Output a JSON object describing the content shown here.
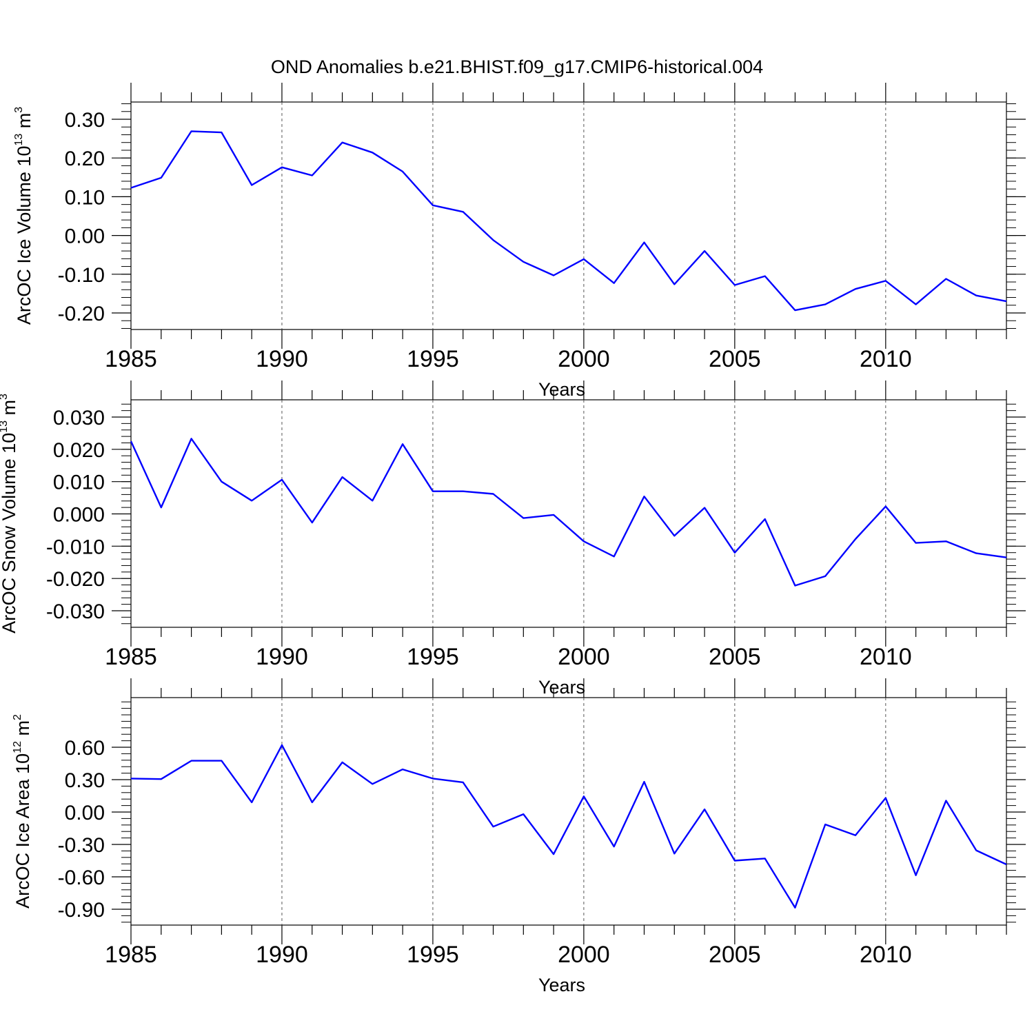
{
  "figure": {
    "title": "OND Anomalies b.e21.BHIST.f09_g17.CMIP6-historical.004"
  },
  "chart_data": [
    {
      "type": "line",
      "title": "",
      "xlabel": "Years",
      "ylabel": {
        "base": "ArcOC Ice Volume 10",
        "exp": "13",
        "unit": " m",
        "unit_exp": "3"
      },
      "x": [
        1985,
        1986,
        1987,
        1988,
        1989,
        1990,
        1991,
        1992,
        1993,
        1994,
        1995,
        1996,
        1997,
        1998,
        1999,
        2000,
        2001,
        2002,
        2003,
        2004,
        2005,
        2006,
        2007,
        2008,
        2009,
        2010,
        2011,
        2012,
        2013,
        2014
      ],
      "series": [
        {
          "values": [
            0.123,
            0.149,
            0.269,
            0.266,
            0.13,
            0.176,
            0.155,
            0.24,
            0.214,
            0.165,
            0.078,
            0.061,
            -0.012,
            -0.068,
            -0.103,
            -0.061,
            -0.123,
            -0.018,
            -0.126,
            -0.04,
            -0.128,
            -0.105,
            -0.193,
            -0.178,
            -0.138,
            -0.117,
            -0.178,
            -0.112,
            -0.155,
            -0.17
          ]
        }
      ],
      "xlim": [
        1985,
        2014
      ],
      "ylim": [
        -0.2,
        0.3
      ],
      "xticks": [
        "1985",
        "1990",
        "1995",
        "2000",
        "2005",
        "2010"
      ],
      "yticks": [
        "0.30",
        "0.20",
        "0.10",
        "0.00",
        "-0.10",
        "-0.20"
      ],
      "line_color": "#0000ff",
      "grid": "vertical dashed at major x ticks"
    },
    {
      "type": "line",
      "title": "",
      "xlabel": "Years",
      "ylabel": {
        "base": "ArcOC Snow Volume 10",
        "exp": "13",
        "unit": " m",
        "unit_exp": "3"
      },
      "x": [
        1985,
        1986,
        1987,
        1988,
        1989,
        1990,
        1991,
        1992,
        1993,
        1994,
        1995,
        1996,
        1997,
        1998,
        1999,
        2000,
        2001,
        2002,
        2003,
        2004,
        2005,
        2006,
        2007,
        2008,
        2009,
        2010,
        2011,
        2012,
        2013,
        2014
      ],
      "series": [
        {
          "values": [
            0.0225,
            0.002,
            0.0233,
            0.01,
            0.0041,
            0.0106,
            -0.0027,
            0.0114,
            0.0041,
            0.0216,
            0.007,
            0.007,
            0.0062,
            -0.0013,
            -0.0003,
            -0.0085,
            -0.0132,
            0.0054,
            -0.0068,
            0.0019,
            -0.012,
            -0.0016,
            -0.0222,
            -0.0193,
            -0.0078,
            0.0023,
            -0.009,
            -0.0085,
            -0.0122,
            -0.0135
          ]
        }
      ],
      "xlim": [
        1985,
        2014
      ],
      "ylim": [
        -0.03,
        0.03
      ],
      "xticks": [
        "1985",
        "1990",
        "1995",
        "2000",
        "2005",
        "2010"
      ],
      "yticks": [
        "0.030",
        "0.020",
        "0.010",
        "0.000",
        "-0.010",
        "-0.020",
        "-0.030"
      ],
      "line_color": "#0000ff",
      "grid": "vertical dashed at major x ticks"
    },
    {
      "type": "line",
      "title": "",
      "xlabel": "Years",
      "ylabel": {
        "base": "ArcOC Ice Area 10",
        "exp": "12",
        "unit": " m",
        "unit_exp": "2"
      },
      "x": [
        1985,
        1986,
        1987,
        1988,
        1989,
        1990,
        1991,
        1992,
        1993,
        1994,
        1995,
        1996,
        1997,
        1998,
        1999,
        2000,
        2001,
        2002,
        2003,
        2004,
        2005,
        2006,
        2007,
        2008,
        2009,
        2010,
        2011,
        2012,
        2013,
        2014
      ],
      "series": [
        {
          "values": [
            0.31,
            0.305,
            0.475,
            0.475,
            0.09,
            0.62,
            0.09,
            0.46,
            0.26,
            0.395,
            0.31,
            0.275,
            -0.135,
            -0.02,
            -0.39,
            0.145,
            -0.32,
            0.28,
            -0.385,
            0.025,
            -0.45,
            -0.43,
            -0.885,
            -0.115,
            -0.215,
            0.13,
            -0.585,
            0.105,
            -0.355,
            -0.485
          ]
        }
      ],
      "xlim": [
        1985,
        2014
      ],
      "ylim": [
        -0.9,
        0.9
      ],
      "xticks": [
        "1985",
        "1990",
        "1995",
        "2000",
        "2005",
        "2010"
      ],
      "yticks": [
        "0.60",
        "0.30",
        "0.00",
        "-0.30",
        "-0.60",
        "-0.90"
      ],
      "line_color": "#0000ff",
      "grid": "vertical dashed at major x ticks"
    }
  ]
}
